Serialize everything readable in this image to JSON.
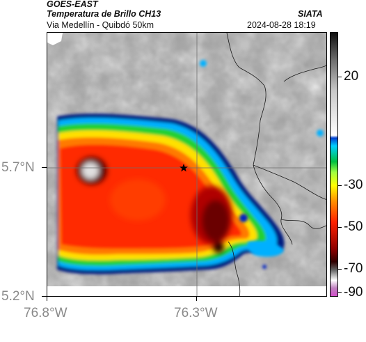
{
  "header": {
    "satellite": "GOES-EAST",
    "product": "Temperatura de Brillo CH13",
    "source": "SIATA",
    "route": "Via Medellín - Quibdó 50km",
    "timestamp": "2024-08-28 18:19"
  },
  "axes": {
    "lat_labels": [
      "5.7°N",
      "5.2°N"
    ],
    "lon_labels": [
      "76.8°W",
      "76.3°W"
    ]
  },
  "colorbar": {
    "tick_labels": [
      "20",
      "-30",
      "-50",
      "-70",
      "-90"
    ],
    "palette": [
      "#d050c8",
      "#ffffff",
      "#5a0000",
      "#ff2000",
      "#ffd000",
      "#20e020",
      "#0020c0",
      "#00a0ff",
      "#f0f0f0",
      "#101010"
    ]
  },
  "map": {
    "marker_icon": "star-icon"
  }
}
